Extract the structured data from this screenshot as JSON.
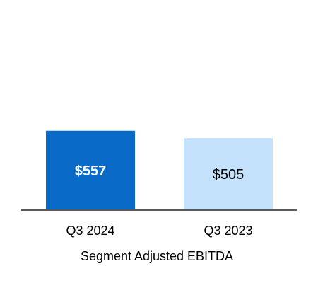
{
  "chart_data": {
    "type": "bar",
    "categories": [
      "Q3 2024",
      "Q3 2023"
    ],
    "values": [
      557,
      505
    ],
    "value_labels": [
      "$557",
      "$505"
    ],
    "title": "",
    "xlabel": "Segment Adjusted EBITDA",
    "ylabel": "",
    "ylim": [
      0,
      1300
    ],
    "grid": false,
    "legend": "none",
    "colors": [
      "#0A6AC8",
      "#C4E2FC"
    ],
    "label_colors": [
      "#FFFFFF",
      "#000000"
    ],
    "axis_color": "#5A5A5A"
  }
}
